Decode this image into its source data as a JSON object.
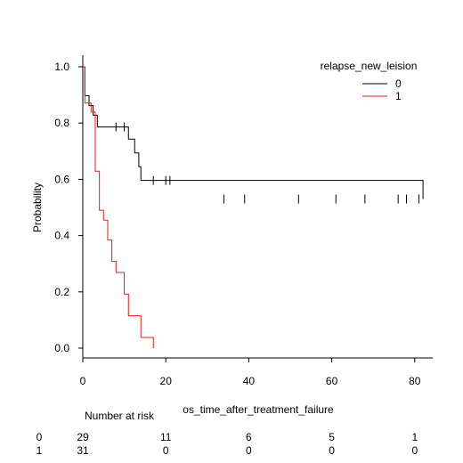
{
  "chart_data": {
    "type": "line",
    "title": "",
    "xlabel": "os_time_after_treatment_failure",
    "ylabel": "Probability",
    "xlim": [
      0,
      83
    ],
    "ylim": [
      0,
      1.0
    ],
    "x_ticks": [
      "0",
      "20",
      "40",
      "60",
      "80"
    ],
    "y_ticks": [
      "0.0",
      "0.2",
      "0.4",
      "0.6",
      "0.8",
      "1.0"
    ],
    "grid": false,
    "legend": {
      "title": "relapse_new_leision",
      "placement": "top-right"
    },
    "series": [
      {
        "name": "0",
        "color": "#000000",
        "step_x": [
          0,
          0.5,
          1.5,
          2.5,
          3.5,
          9,
          11,
          12.5,
          13.5,
          14,
          28,
          82
        ],
        "step_y": [
          1.0,
          0.897,
          0.862,
          0.828,
          0.786,
          0.786,
          0.743,
          0.694,
          0.645,
          0.596,
          0.596,
          0.53
        ],
        "censor_x": [
          8,
          10,
          17,
          20,
          21,
          34,
          39,
          52,
          61,
          68,
          76,
          78,
          81
        ],
        "censor_y": [
          0.786,
          0.786,
          0.596,
          0.596,
          0.596,
          0.53,
          0.53,
          0.53,
          0.53,
          0.53,
          0.53,
          0.53,
          0.53
        ]
      },
      {
        "name": "1",
        "color": "#e0201b",
        "step_x": [
          0,
          0.5,
          2,
          3,
          4,
          5,
          6,
          7,
          8,
          10,
          11,
          14,
          17
        ],
        "step_y": [
          1.0,
          0.871,
          0.839,
          0.629,
          0.49,
          0.455,
          0.385,
          0.308,
          0.269,
          0.192,
          0.115,
          0.038,
          0.0
        ],
        "censor_x": [],
        "censor_y": []
      }
    ],
    "risk_table": {
      "title": "Number at risk",
      "times": [
        "0",
        "20",
        "40",
        "60",
        "80"
      ],
      "rows": [
        {
          "group": "0",
          "counts": [
            "29",
            "11",
            "6",
            "5",
            "1"
          ]
        },
        {
          "group": "1",
          "counts": [
            "31",
            "0",
            "0",
            "0",
            "0"
          ]
        }
      ]
    }
  }
}
